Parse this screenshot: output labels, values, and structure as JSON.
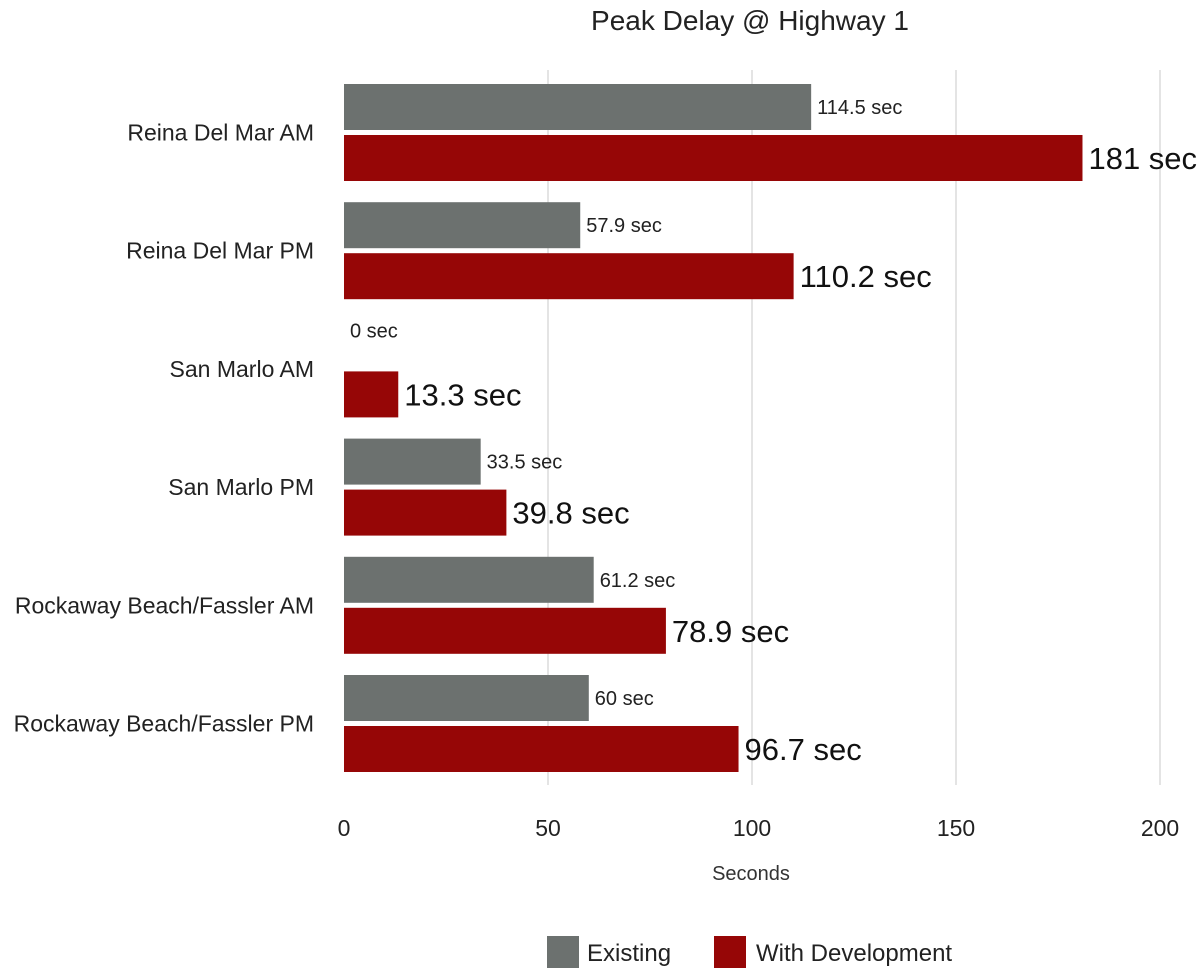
{
  "chart_data": {
    "type": "bar",
    "orientation": "horizontal",
    "title": "Peak Delay @ Highway 1",
    "xlabel": "Seconds",
    "ylabel": "",
    "xlim": [
      0,
      200
    ],
    "x_ticks": [
      0,
      50,
      100,
      150,
      200
    ],
    "x_tick_labels": [
      "0",
      "50",
      "100",
      "150",
      "200"
    ],
    "grid": true,
    "legend_position": "bottom",
    "categories": [
      "Reina Del Mar AM",
      "Reina Del Mar PM",
      "San Marlo AM",
      "San Marlo PM",
      "Rockaway Beach/Fassler AM",
      "Rockaway Beach/Fassler PM"
    ],
    "series": [
      {
        "name": "Existing",
        "color": "#6c716f",
        "values": [
          114.5,
          57.9,
          0,
          33.5,
          61.2,
          60
        ],
        "data_labels": [
          "114.5 sec",
          "57.9 sec",
          "0 sec",
          "33.5 sec",
          "61.2 sec",
          "60 sec"
        ]
      },
      {
        "name": "With Development",
        "color": "#960606",
        "values": [
          181,
          110.2,
          13.3,
          39.8,
          78.9,
          96.7
        ],
        "data_labels": [
          "181 sec",
          "110.2 sec",
          "13.3 sec",
          "39.8 sec",
          "78.9 sec",
          "96.7 sec"
        ]
      }
    ]
  }
}
